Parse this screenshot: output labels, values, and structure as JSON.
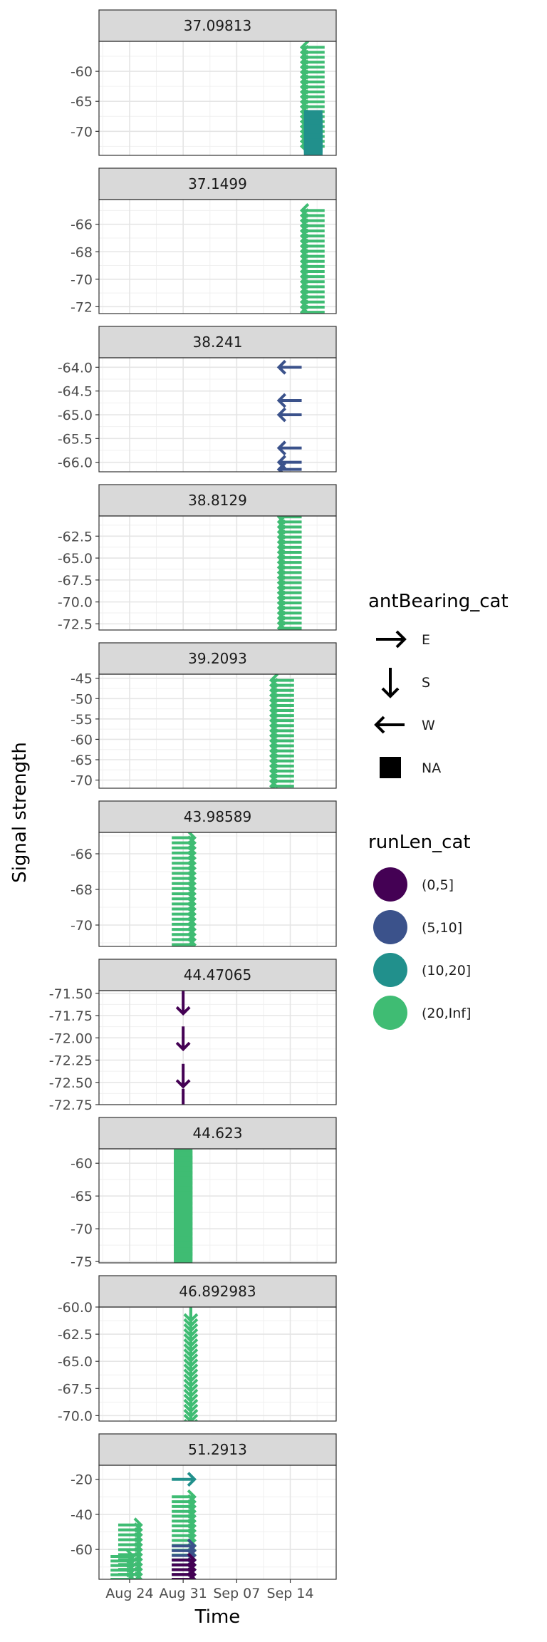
{
  "chart_data": {
    "type": "scatter",
    "facet_by": "freq",
    "xlabel": "Time",
    "ylabel": "Signal strength",
    "x_ticks": [
      "Aug 24",
      "Aug 31",
      "Sep 07",
      "Sep 14"
    ],
    "x_tick_dates": [
      "2022-08-24",
      "2022-08-31",
      "2022-09-07",
      "2022-09-14"
    ],
    "xlim": [
      "2022-08-20",
      "2022-09-20"
    ],
    "grid": true,
    "legend_placement": "right",
    "legends": {
      "shape": {
        "title": "antBearing_cat",
        "entries": [
          {
            "label": "E",
            "icon": "arrow-right-icon"
          },
          {
            "label": "S",
            "icon": "arrow-down-icon"
          },
          {
            "label": "W",
            "icon": "arrow-left-icon"
          },
          {
            "label": "NA",
            "icon": "square-icon"
          }
        ]
      },
      "color": {
        "title": "runLen_cat",
        "entries": [
          {
            "label": "(0,5]",
            "color": "#440154"
          },
          {
            "label": "(5,10]",
            "color": "#3b528b"
          },
          {
            "label": "(10,20]",
            "color": "#21908c"
          },
          {
            "label": "(20,Inf]",
            "color": "#3fbc73"
          }
        ]
      }
    },
    "panels": [
      {
        "label": "37.09813",
        "ylim": [
          -74,
          -55
        ],
        "y_ticks": [
          "-60",
          "-65",
          "-70"
        ],
        "y_tick_values": [
          -60,
          -65,
          -70
        ],
        "points": [
          {
            "date": "2022-09-17",
            "y_from": -56,
            "y_to": -72.5,
            "bearing": "W",
            "run": "(20,Inf]"
          },
          {
            "date": "2022-09-17",
            "y_from": -68,
            "y_to": -73.5,
            "bearing": "NA",
            "run": "(10,20]"
          }
        ]
      },
      {
        "label": "37.1499",
        "ylim": [
          -72.5,
          -64.2
        ],
        "y_ticks": [
          "-66",
          "-68",
          "-70",
          "-72"
        ],
        "y_tick_values": [
          -66,
          -68,
          -70,
          -72
        ],
        "points": [
          {
            "date": "2022-09-17",
            "y_from": -65,
            "y_to": -72.4,
            "bearing": "W",
            "run": "(20,Inf]"
          }
        ]
      },
      {
        "label": "38.241",
        "ylim": [
          -66.2,
          -63.8
        ],
        "y_ticks": [
          "-64.0",
          "-64.5",
          "-65.0",
          "-65.5",
          "-66.0"
        ],
        "y_tick_values": [
          -64.0,
          -64.5,
          -65.0,
          -65.5,
          -66.0
        ],
        "points": [
          {
            "date": "2022-09-14",
            "y": -64.0,
            "bearing": "W",
            "run": "(5,10]"
          },
          {
            "date": "2022-09-14",
            "y": -64.7,
            "bearing": "W",
            "run": "(5,10]"
          },
          {
            "date": "2022-09-14",
            "y": -65.0,
            "bearing": "W",
            "run": "(5,10]"
          },
          {
            "date": "2022-09-14",
            "y": -65.7,
            "bearing": "W",
            "run": "(5,10]"
          },
          {
            "date": "2022-09-14",
            "y": -66.0,
            "bearing": "W",
            "run": "(5,10]"
          },
          {
            "date": "2022-09-14",
            "y": -66.15,
            "bearing": "W",
            "run": "(5,10]"
          }
        ]
      },
      {
        "label": "38.8129",
        "ylim": [
          -73.2,
          -60.2
        ],
        "y_ticks": [
          "-62.5",
          "-65.0",
          "-67.5",
          "-70.0",
          "-72.5"
        ],
        "y_tick_values": [
          -62.5,
          -65.0,
          -67.5,
          -70.0,
          -72.5
        ],
        "points": [
          {
            "date": "2022-09-14",
            "y_from": -60.3,
            "y_to": -73,
            "bearing": "W",
            "run": "(20,Inf]"
          }
        ]
      },
      {
        "label": "39.2093",
        "ylim": [
          -72,
          -44
        ],
        "y_ticks": [
          "-45",
          "-50",
          "-55",
          "-60",
          "-65",
          "-70"
        ],
        "y_tick_values": [
          -45,
          -50,
          -55,
          -60,
          -65,
          -70
        ],
        "points": [
          {
            "date": "2022-09-13",
            "y_from": -45.5,
            "y_to": -71.5,
            "bearing": "W",
            "run": "(20,Inf]"
          }
        ]
      },
      {
        "label": "43.98589",
        "ylim": [
          -71.2,
          -64.8
        ],
        "y_ticks": [
          "-66",
          "-68",
          "-70"
        ],
        "y_tick_values": [
          -66,
          -68,
          -70
        ],
        "points": [
          {
            "date": "2022-08-31",
            "y_from": -65.1,
            "y_to": -71.1,
            "bearing": "E",
            "run": "(20,Inf]"
          }
        ]
      },
      {
        "label": "44.47065",
        "ylim": [
          -72.75,
          -71.47
        ],
        "y_ticks": [
          "-71.50",
          "-71.75",
          "-72.00",
          "-72.25",
          "-72.50",
          "-72.75"
        ],
        "y_tick_values": [
          -71.5,
          -71.75,
          -72.0,
          -72.25,
          -72.5,
          -72.75
        ],
        "points": [
          {
            "date": "2022-08-31",
            "y": -71.6,
            "bearing": "S",
            "run": "(0,5]"
          },
          {
            "date": "2022-08-31",
            "y": -72.0,
            "bearing": "S",
            "run": "(0,5]"
          },
          {
            "date": "2022-08-31",
            "y": -72.42,
            "bearing": "S",
            "run": "(0,5]"
          },
          {
            "date": "2022-08-31",
            "y": -72.7,
            "bearing": "S",
            "run": "(0,5]"
          }
        ]
      },
      {
        "label": "44.623",
        "ylim": [
          -75.2,
          -57.8
        ],
        "y_ticks": [
          "-60",
          "-65",
          "-70",
          "-75"
        ],
        "y_tick_values": [
          -60,
          -65,
          -70,
          -75
        ],
        "points": [
          {
            "date": "2022-08-31",
            "y_from": -58,
            "y_to": -75,
            "bearing": "NA",
            "run": "(20,Inf]"
          }
        ]
      },
      {
        "label": "46.892983",
        "ylim": [
          -70.5,
          -60
        ],
        "y_ticks": [
          "-60.0",
          "-62.5",
          "-65.0",
          "-67.5",
          "-70.0"
        ],
        "y_tick_values": [
          -60.0,
          -62.5,
          -65.0,
          -67.5,
          -70.0
        ],
        "points": [
          {
            "date": "2022-09-01",
            "y_from": -60.2,
            "y_to": -70.4,
            "bearing": "S",
            "run": "(20,Inf]"
          }
        ]
      },
      {
        "label": "51.2913",
        "ylim": [
          -77,
          -12
        ],
        "y_ticks": [
          "-20",
          "-40",
          "-60"
        ],
        "y_tick_values": [
          -20,
          -40,
          -60
        ],
        "points": [
          {
            "date": "2022-08-24",
            "y_from": -46,
            "y_to": -77,
            "bearing": "E",
            "run": "(20,Inf]"
          },
          {
            "date": "2022-08-23",
            "y_from": -64,
            "y_to": -77,
            "bearing": "E",
            "run": "(20,Inf]"
          },
          {
            "date": "2022-08-31",
            "y_from": -30,
            "y_to": -77,
            "bearing": "E",
            "run": "(20,Inf]"
          },
          {
            "date": "2022-08-31",
            "y": -20,
            "bearing": "E",
            "run": "(10,20]"
          },
          {
            "date": "2022-08-31",
            "y_from": -58,
            "y_to": -77,
            "bearing": "E",
            "run": "(5,10]"
          },
          {
            "date": "2022-08-31",
            "y_from": -66,
            "y_to": -77,
            "bearing": "E",
            "run": "(0,5]"
          }
        ]
      }
    ]
  }
}
